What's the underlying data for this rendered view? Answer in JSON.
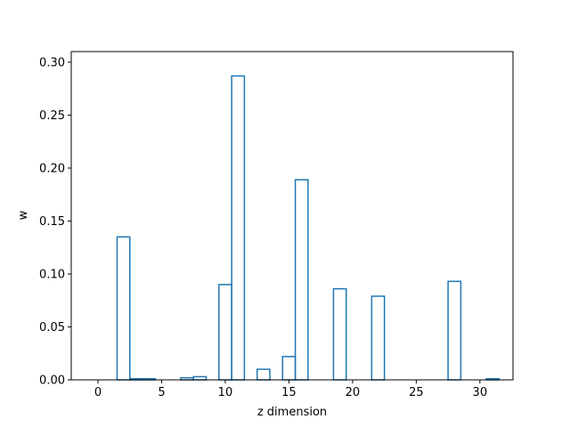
{
  "chart_data": {
    "type": "bar",
    "style": "step-histogram",
    "xlabel": "z dimension",
    "ylabel": "w",
    "xlim": [
      -2.1,
      32.6
    ],
    "ylim": [
      0,
      0.31
    ],
    "x_ticks": [
      0,
      5,
      10,
      15,
      20,
      25,
      30
    ],
    "y_ticks": [
      0.0,
      0.05,
      0.1,
      0.15,
      0.2,
      0.25,
      0.3
    ],
    "y_tick_labels": [
      "0.00",
      "0.05",
      "0.10",
      "0.15",
      "0.20",
      "0.25",
      "0.30"
    ],
    "grid": false,
    "legend": "none",
    "series": [
      {
        "color": "#1f77b4",
        "x": [
          0,
          1,
          2,
          3,
          4,
          5,
          6,
          7,
          8,
          9,
          10,
          11,
          12,
          13,
          14,
          15,
          16,
          17,
          18,
          19,
          20,
          21,
          22,
          23,
          24,
          25,
          26,
          27,
          28,
          29,
          30,
          31
        ],
        "values": [
          0.0,
          0.0,
          0.135,
          0.001,
          0.001,
          0.0,
          0.0,
          0.002,
          0.003,
          0.0,
          0.09,
          0.287,
          0.0,
          0.01,
          0.0,
          0.022,
          0.189,
          0.0,
          0.0,
          0.086,
          0.0,
          0.0,
          0.079,
          0.0,
          0.0,
          0.0,
          0.0,
          0.0,
          0.093,
          0.0,
          0.0,
          0.001
        ]
      }
    ]
  }
}
